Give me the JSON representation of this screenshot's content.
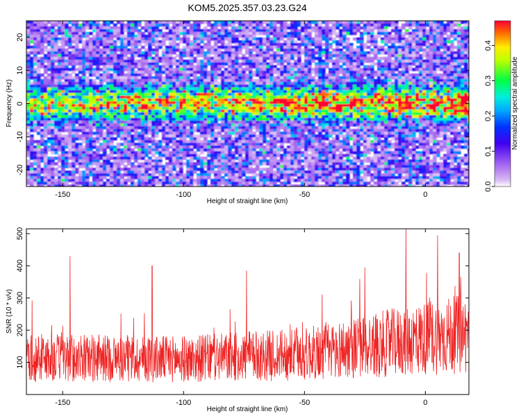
{
  "title": "KOM5.2025.357.03.23.G24",
  "colors": {
    "snr_line": "#ee2222",
    "frame": "#000000",
    "background": "#ffffff"
  },
  "chart_data": [
    {
      "type": "heatmap",
      "xlabel": "Height of straight line (km)",
      "ylabel": "Frequency (Hz)",
      "xlim": [
        -165,
        18
      ],
      "ylim": [
        -25,
        25
      ],
      "x_ticks": [
        -150,
        -100,
        -50,
        0
      ],
      "x_tick_labels": [
        "-150",
        "-100",
        "-50",
        "0"
      ],
      "y_ticks": [
        -20,
        -10,
        0,
        10,
        20
      ],
      "y_tick_labels": [
        "-20",
        "-10",
        "0",
        "10",
        "20"
      ],
      "band": {
        "center_frequency_hz": 0,
        "half_width_hz": 4
      },
      "colorbar": {
        "label": "Normalized spectral amplitude",
        "range": [
          0,
          0.47
        ],
        "ticks": [
          0,
          0.1,
          0.2,
          0.3,
          0.4
        ],
        "tick_labels": [
          "0.0",
          "0.1",
          "0.2",
          "0.3",
          "0.4"
        ],
        "colormap": "rainbow"
      }
    },
    {
      "type": "line",
      "xlabel": "Height of straight line (km)",
      "ylabel": "SNR (10 * v/v)",
      "xlim": [
        -165,
        18
      ],
      "ylim": [
        0,
        515
      ],
      "x_ticks": [
        -150,
        -100,
        -50,
        0
      ],
      "x_tick_labels": [
        "-150",
        "-100",
        "-50",
        "0"
      ],
      "y_ticks": [
        100,
        200,
        300,
        400,
        500
      ],
      "y_tick_labels": [
        "100",
        "200",
        "300",
        "400",
        "500"
      ],
      "trend": [
        {
          "x": -165,
          "y": 115
        },
        {
          "x": -100,
          "y": 110
        },
        {
          "x": -50,
          "y": 125
        },
        {
          "x": -25,
          "y": 150
        },
        {
          "x": 0,
          "y": 175
        },
        {
          "x": 18,
          "y": 190
        }
      ],
      "peaks": [
        {
          "x": -147,
          "y": 430
        },
        {
          "x": -113,
          "y": 400
        },
        {
          "x": -74,
          "y": 385
        },
        {
          "x": -25,
          "y": 395
        },
        {
          "x": -8,
          "y": 515
        },
        {
          "x": 5,
          "y": 495
        },
        {
          "x": 14,
          "y": 440
        }
      ]
    }
  ]
}
